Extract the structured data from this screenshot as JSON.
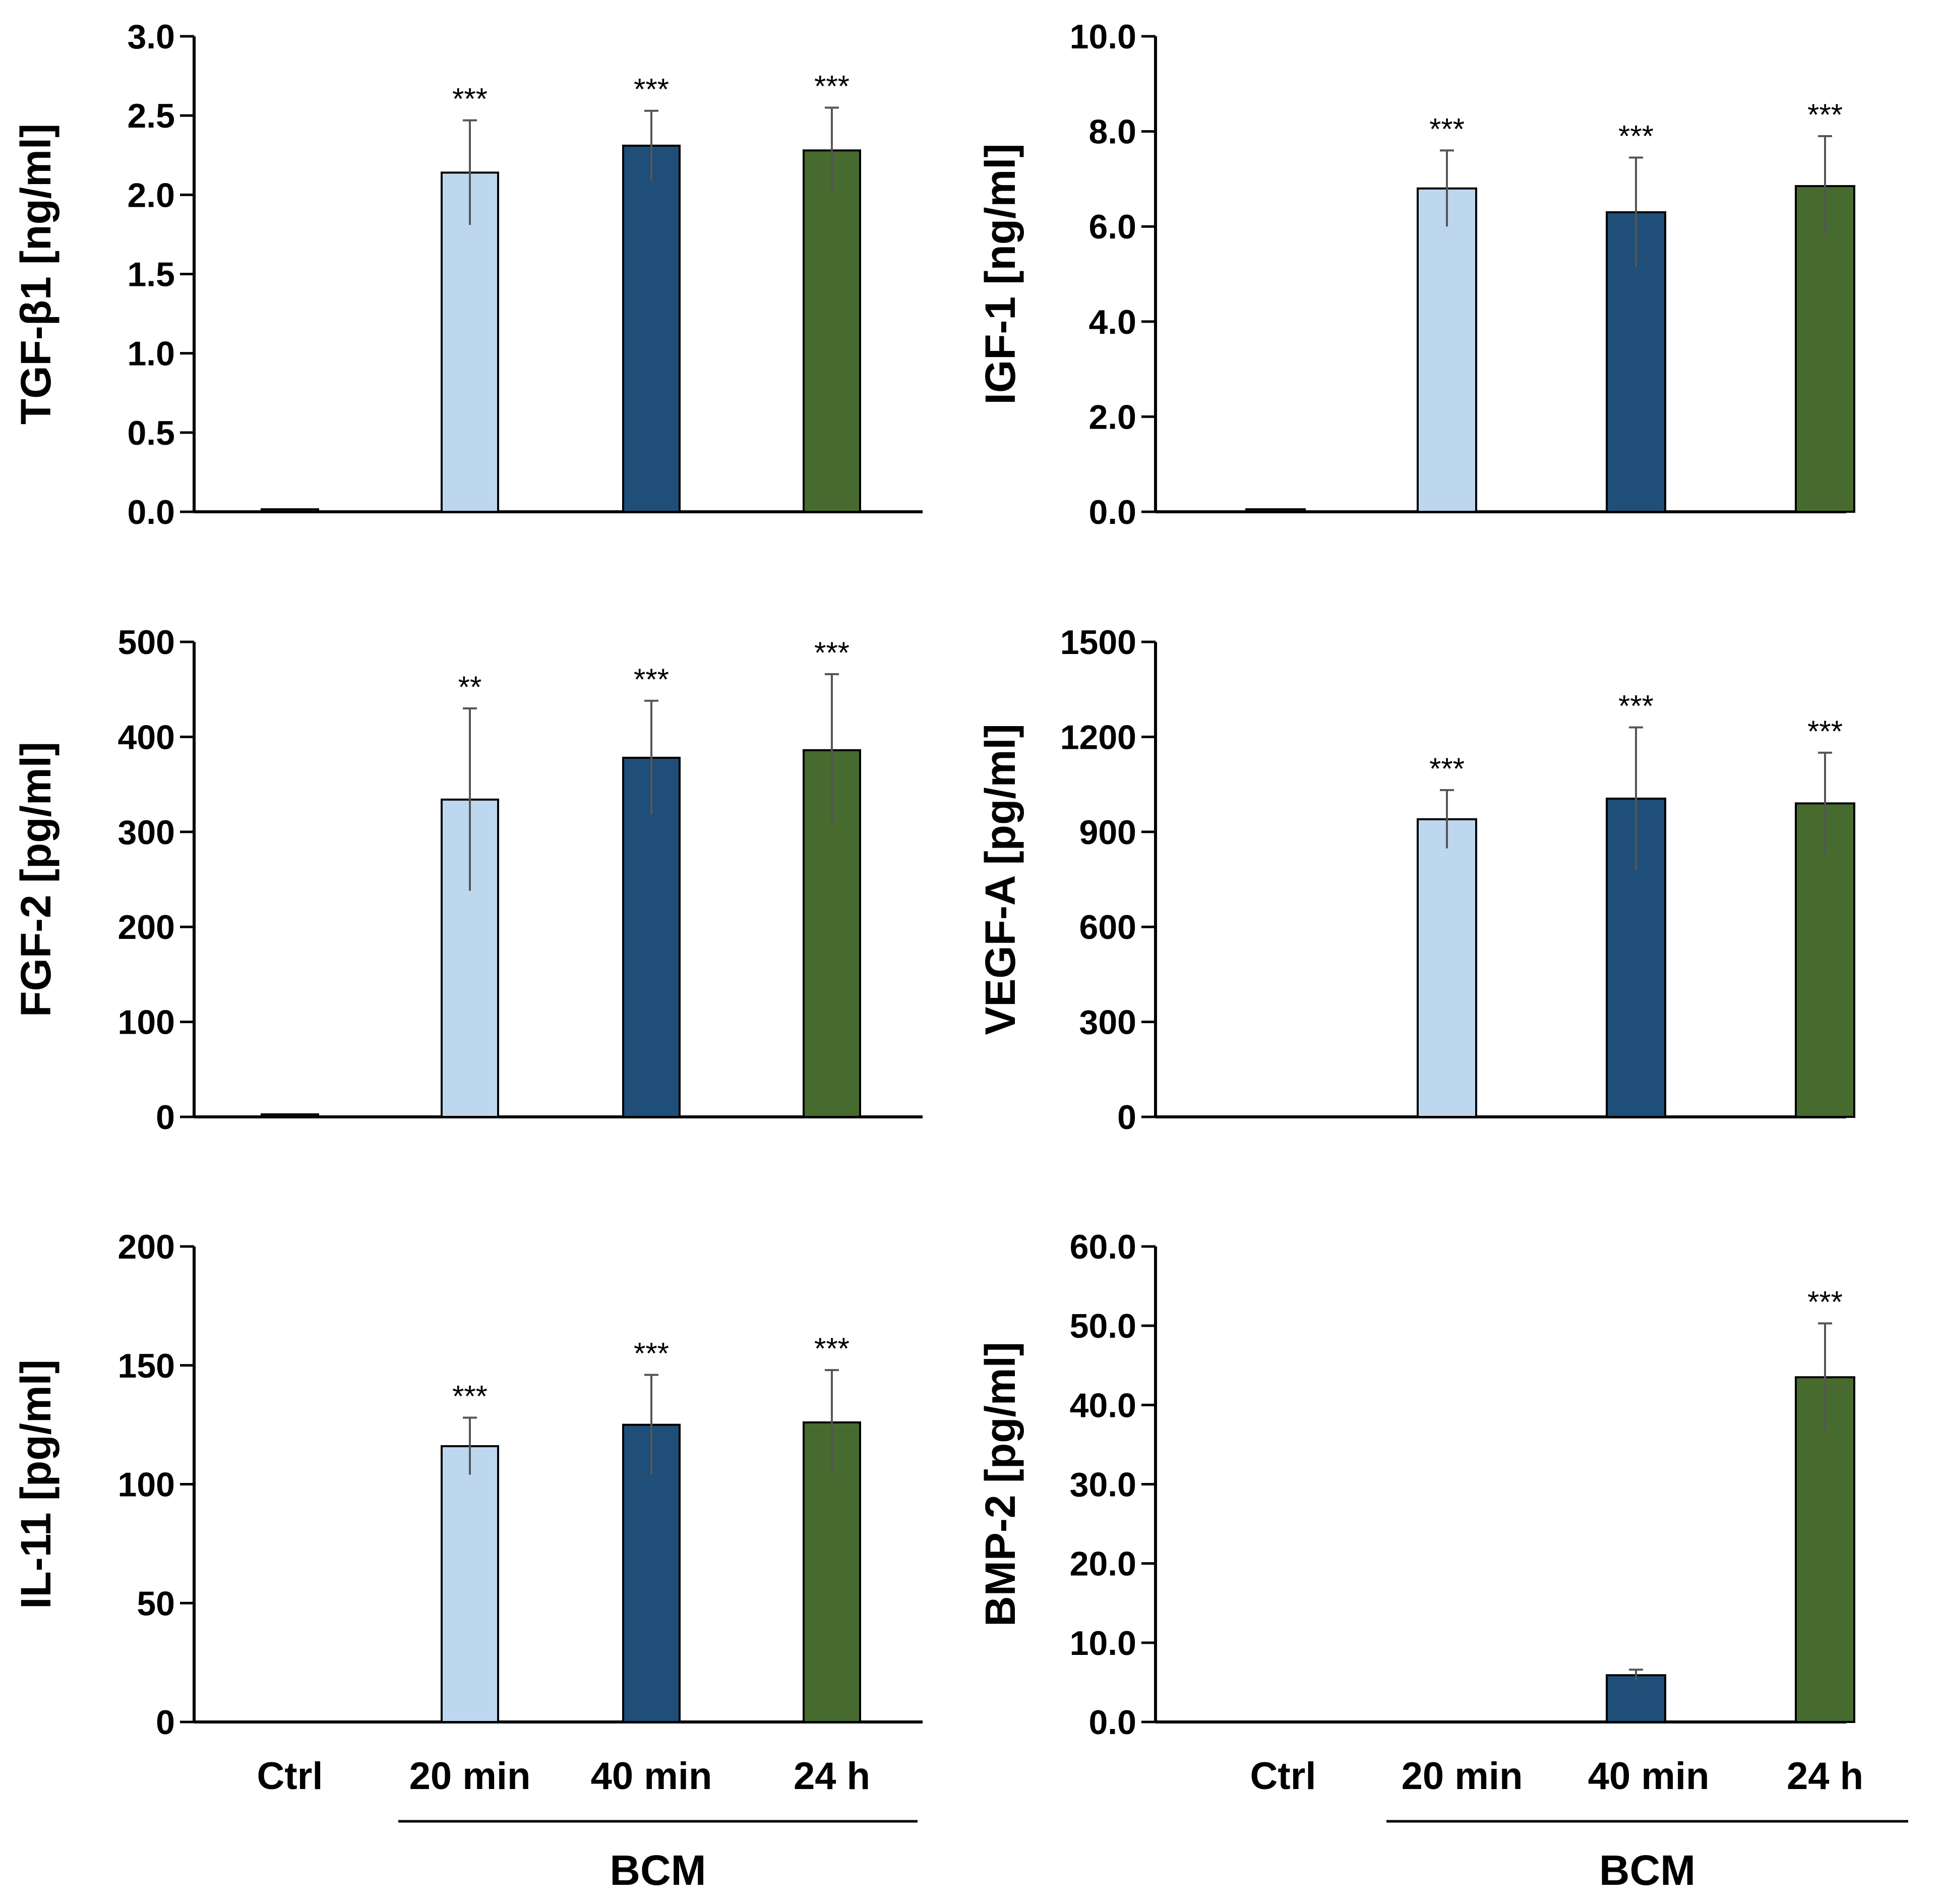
{
  "colors": {
    "ctrl": "#1a1a1a",
    "min20": "#bdd7ee",
    "min40": "#1f4e79",
    "h24": "#476b2e",
    "axis": "#000000",
    "error_bar": "#555555"
  },
  "x_axis": {
    "categories": [
      "Ctrl",
      "20 min",
      "40 min",
      "24 h"
    ],
    "group_label": "BCM"
  },
  "chart_data": [
    {
      "type": "bar",
      "panel": "top-left",
      "ylabel": "TGF-β1 [ng/ml]",
      "ylim": [
        0,
        3.0
      ],
      "yticks": [
        0,
        0.5,
        1.0,
        1.5,
        2.0,
        2.5,
        3.0
      ],
      "ytick_labels": [
        "0.0",
        "0.5",
        "1.0",
        "1.5",
        "2.0",
        "2.5",
        "3.0"
      ],
      "categories": [
        "Ctrl",
        "20 min",
        "40 min",
        "24 h"
      ],
      "values": [
        0.01,
        2.14,
        2.31,
        2.28
      ],
      "errors": [
        0,
        0.33,
        0.22,
        0.27
      ],
      "significance": [
        "",
        "***",
        "***",
        "***"
      ]
    },
    {
      "type": "bar",
      "panel": "top-right",
      "ylabel": "IGF-1 [ng/ml]",
      "ylim": [
        0,
        10.0
      ],
      "yticks": [
        0,
        2,
        4,
        6,
        8,
        10
      ],
      "ytick_labels": [
        "0.0",
        "2.0",
        "4.0",
        "6.0",
        "8.0",
        "10.0"
      ],
      "categories": [
        "Ctrl",
        "20 min",
        "40 min",
        "24 h"
      ],
      "values": [
        0.02,
        6.8,
        6.3,
        6.85
      ],
      "errors": [
        0,
        0.8,
        1.15,
        1.05
      ],
      "significance": [
        "",
        "***",
        "***",
        "***"
      ]
    },
    {
      "type": "bar",
      "panel": "middle-left",
      "ylabel": "FGF-2 [pg/ml]",
      "ylim": [
        0,
        500
      ],
      "yticks": [
        0,
        100,
        200,
        300,
        400,
        500
      ],
      "ytick_labels": [
        "0",
        "100",
        "200",
        "300",
        "400",
        "500"
      ],
      "categories": [
        "Ctrl",
        "20 min",
        "40 min",
        "24 h"
      ],
      "values": [
        2,
        334,
        378,
        386
      ],
      "errors": [
        0,
        96,
        60,
        80
      ],
      "significance": [
        "",
        "**",
        "***",
        "***"
      ]
    },
    {
      "type": "bar",
      "panel": "middle-right",
      "ylabel": "VEGF-A [pg/ml]",
      "ylim": [
        0,
        1500
      ],
      "yticks": [
        0,
        300,
        600,
        900,
        1200,
        1500
      ],
      "ytick_labels": [
        "0",
        "300",
        "600",
        "900",
        "1200",
        "1500"
      ],
      "categories": [
        "Ctrl",
        "20 min",
        "40 min",
        "24 h"
      ],
      "values": [
        0,
        940,
        1005,
        990
      ],
      "errors": [
        0,
        92,
        225,
        160
      ],
      "significance": [
        "",
        "***",
        "***",
        "***"
      ]
    },
    {
      "type": "bar",
      "panel": "bottom-left",
      "ylabel": "IL-11 [pg/ml]",
      "ylim": [
        0,
        200
      ],
      "yticks": [
        0,
        50,
        100,
        150,
        200
      ],
      "ytick_labels": [
        "0",
        "50",
        "100",
        "150",
        "200"
      ],
      "categories": [
        "Ctrl",
        "20 min",
        "40 min",
        "24 h"
      ],
      "values": [
        0,
        116,
        125,
        126
      ],
      "errors": [
        0,
        12,
        21,
        22
      ],
      "significance": [
        "",
        "***",
        "***",
        "***"
      ]
    },
    {
      "type": "bar",
      "panel": "bottom-right",
      "ylabel": "BMP-2 [pg/ml]",
      "ylim": [
        0,
        60.0
      ],
      "yticks": [
        0,
        10,
        20,
        30,
        40,
        50,
        60
      ],
      "ytick_labels": [
        "0.0",
        "10.0",
        "20.0",
        "30.0",
        "40.0",
        "50.0",
        "60.0"
      ],
      "categories": [
        "Ctrl",
        "20 min",
        "40 min",
        "24 h"
      ],
      "values": [
        0,
        0,
        5.9,
        43.5
      ],
      "errors": [
        0,
        0,
        0.7,
        6.8
      ],
      "significance": [
        "",
        "",
        "",
        "***"
      ]
    }
  ]
}
